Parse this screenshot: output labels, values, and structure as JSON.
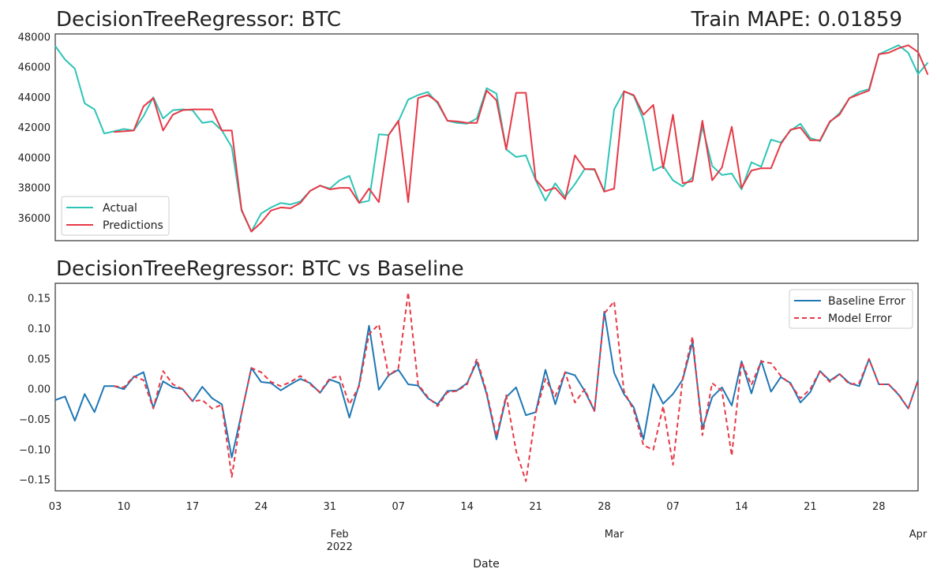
{
  "charts": [
    {
      "title": "DecisionTreeRegressor: BTC",
      "title_right": "Train MAPE: 0.01859",
      "ylim": [
        34500,
        48200
      ],
      "yticks": [
        "36000",
        "38000",
        "40000",
        "42000",
        "44000",
        "46000",
        "48000"
      ],
      "legend": {
        "position": "lower-left",
        "items": [
          "Actual",
          "Predictions"
        ]
      }
    },
    {
      "title": "DecisionTreeRegressor: BTC vs Baseline",
      "ylim": [
        -0.168,
        0.175
      ],
      "yticks": [
        "−0.15",
        "−0.10",
        "−0.05",
        "0.00",
        "0.05",
        "0.10",
        "0.15"
      ],
      "legend": {
        "position": "upper-right",
        "items": [
          "Baseline Error",
          "Model Error"
        ]
      }
    }
  ],
  "xaxis": {
    "label": "Date",
    "day_ticks": [
      "03",
      "10",
      "17",
      "24",
      "31",
      "07",
      "14",
      "21",
      "28",
      "07",
      "14",
      "21",
      "28"
    ],
    "month_ticks": [
      "Feb\n2022",
      "Mar",
      "Apr"
    ]
  },
  "colors": {
    "actual": "#2ec4b6",
    "predictions": "#e63946",
    "baseline": "#1f77b4",
    "model": "#e63946",
    "axes": "#333333"
  },
  "chart_data": [
    {
      "type": "line",
      "title": "DecisionTreeRegressor: BTC",
      "xlabel": "",
      "ylabel": "",
      "x_start": "2022-01-03",
      "x_end": "2022-04-01",
      "ylim": [
        34500,
        48200
      ],
      "grid": false,
      "series": [
        {
          "name": "Actual",
          "values": [
            47400,
            46500,
            45900,
            43600,
            43200,
            41600,
            41750,
            41900,
            41800,
            42750,
            44000,
            42600,
            43150,
            43200,
            43150,
            42300,
            42400,
            41800,
            40700,
            36500,
            35100,
            36300,
            36700,
            37000,
            36900,
            37100,
            37800,
            38150,
            37950,
            38500,
            38800,
            37000,
            37150,
            41550,
            41500,
            42400,
            43850,
            44150,
            44350,
            43600,
            42450,
            42300,
            42250,
            42600,
            44600,
            44250,
            40550,
            40050,
            40150,
            38500,
            37150,
            38300,
            37400,
            38250,
            39250,
            39200,
            37750,
            43200,
            44400,
            44100,
            42500,
            39150,
            39450,
            38500,
            38100,
            38700,
            42050,
            39450,
            38850,
            38950,
            37900,
            39700,
            39400,
            41200,
            41000,
            41800,
            42250,
            41300,
            41100,
            42350,
            42950,
            43950,
            44350,
            44550,
            46850,
            47150,
            47450,
            46950,
            45550,
            46300
          ]
        },
        {
          "name": "Predictions",
          "values": [
            null,
            null,
            null,
            null,
            null,
            null,
            41700,
            41750,
            41800,
            43400,
            43950,
            41800,
            42850,
            43150,
            43200,
            43200,
            43200,
            41800,
            41800,
            36550,
            35100,
            35700,
            36500,
            36700,
            36650,
            37000,
            37800,
            38150,
            37900,
            38000,
            38000,
            37000,
            37950,
            37050,
            41500,
            42450,
            37050,
            43950,
            44150,
            43700,
            42450,
            42400,
            42300,
            42300,
            44450,
            43800,
            40550,
            44300,
            44300,
            38550,
            37800,
            38000,
            37250,
            40150,
            39250,
            39250,
            37750,
            37950,
            44400,
            44150,
            42850,
            43500,
            39300,
            42850,
            38300,
            38450,
            42450,
            38500,
            39350,
            42050,
            38000,
            39150,
            39300,
            39300,
            40900,
            41850,
            42000,
            41150,
            41150,
            42400,
            42850,
            43950,
            44200,
            44450,
            46850,
            46950,
            47250,
            47450,
            47000,
            45500
          ]
        }
      ]
    },
    {
      "type": "line",
      "title": "DecisionTreeRegressor: BTC vs Baseline",
      "xlabel": "Date",
      "ylabel": "",
      "x_start": "2022-01-03",
      "x_end": "2022-04-01",
      "ylim": [
        -0.168,
        0.175
      ],
      "grid": false,
      "series": [
        {
          "name": "Baseline Error",
          "values": [
            -0.018,
            -0.012,
            -0.052,
            -0.008,
            -0.038,
            0.005,
            0.005,
            0.0,
            0.02,
            0.028,
            -0.031,
            0.013,
            0.003,
            0.0,
            -0.02,
            0.004,
            -0.015,
            -0.025,
            -0.113,
            -0.04,
            0.035,
            0.012,
            0.01,
            -0.002,
            0.008,
            0.017,
            0.01,
            -0.006,
            0.016,
            0.01,
            -0.047,
            0.008,
            0.105,
            -0.001,
            0.023,
            0.032,
            0.008,
            0.006,
            -0.015,
            -0.025,
            -0.003,
            -0.002,
            0.01,
            0.045,
            -0.008,
            -0.083,
            -0.013,
            0.003,
            -0.043,
            -0.038,
            0.032,
            -0.025,
            0.028,
            0.023,
            -0.003,
            -0.036,
            0.128,
            0.027,
            -0.008,
            -0.03,
            -0.083,
            0.008,
            -0.024,
            -0.008,
            0.016,
            0.078,
            -0.065,
            -0.013,
            0.003,
            -0.027,
            0.046,
            -0.007,
            0.047,
            -0.004,
            0.02,
            0.01,
            -0.022,
            -0.005,
            0.03,
            0.014,
            0.025,
            0.01,
            0.005,
            0.05,
            0.008,
            0.008,
            -0.009,
            -0.032,
            0.015
          ]
        },
        {
          "name": "Model Error",
          "values": [
            null,
            null,
            null,
            null,
            null,
            null,
            0.005,
            0.003,
            0.021,
            0.015,
            -0.032,
            0.03,
            0.008,
            0.0,
            -0.02,
            -0.018,
            -0.032,
            -0.026,
            -0.145,
            -0.04,
            0.035,
            0.028,
            0.012,
            0.005,
            0.012,
            0.022,
            0.008,
            -0.005,
            0.018,
            0.022,
            -0.025,
            0.005,
            0.091,
            0.107,
            0.022,
            0.035,
            0.16,
            0.008,
            -0.013,
            -0.028,
            -0.005,
            -0.003,
            0.008,
            0.05,
            -0.005,
            -0.078,
            -0.01,
            -0.102,
            -0.152,
            -0.04,
            0.017,
            -0.012,
            0.028,
            -0.022,
            0.0,
            -0.036,
            0.125,
            0.145,
            -0.003,
            -0.035,
            -0.093,
            -0.1,
            -0.028,
            -0.125,
            0.018,
            0.087,
            -0.076,
            0.01,
            -0.003,
            -0.11,
            0.045,
            0.007,
            0.046,
            0.043,
            0.022,
            0.008,
            -0.015,
            0.0,
            0.03,
            0.012,
            0.025,
            0.008,
            0.01,
            0.05,
            0.008,
            0.008,
            -0.008,
            -0.032,
            0.015
          ]
        }
      ]
    }
  ]
}
